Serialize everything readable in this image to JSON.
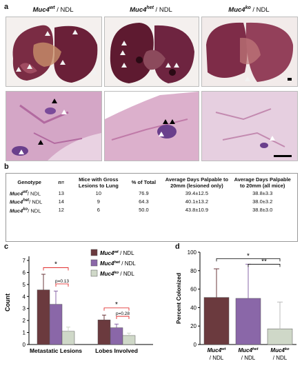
{
  "panel_a": {
    "letter": "a",
    "headers": [
      {
        "gene": "Muc4",
        "sup": "wt",
        "suffix": " / NDL"
      },
      {
        "gene": "Muc4",
        "sup": "het",
        "suffix": " / NDL"
      },
      {
        "gene": "Muc4",
        "sup": "ko",
        "suffix": " / NDL"
      }
    ],
    "colors": {
      "lung_dark": "#5a1a2e",
      "lung_mid": "#8e3a52",
      "lung_light": "#c07a88",
      "hist_bg": "#e8cfe0",
      "hist_tissue": "#c993b8",
      "hist_lesion": "#6a3f8c"
    }
  },
  "panel_b": {
    "letter": "b",
    "columns": [
      "Genotype",
      "n=",
      "Mice with Gross Lesions to Lung",
      "% of Total",
      "Average Days Palpable to 20mm (lesioned only)",
      "Average Days Palpable to 20mm (all mice)"
    ],
    "rows": [
      {
        "gene": "Muc4",
        "sup": "wt",
        "suffix": "/ NDL",
        "n": "13",
        "mice": "10",
        "pct": "76.9",
        "avg_lesioned": "39.4±12.5",
        "avg_all": "38.8±3.3"
      },
      {
        "gene": "Muc4",
        "sup": "het",
        "suffix": "/ NDL",
        "n": "14",
        "mice": "9",
        "pct": "64.3",
        "avg_lesioned": "40.1±13.2",
        "avg_all": "38.0±3.2"
      },
      {
        "gene": "Muc4",
        "sup": "ko",
        "suffix": "/ NDL",
        "n": "12",
        "mice": "6",
        "pct": "50.0",
        "avg_lesioned": "43.8±10.9",
        "avg_all": "38.8±3.0"
      }
    ]
  },
  "panel_c": {
    "letter": "c"
  },
  "panel_d": {
    "letter": "d"
  },
  "chart_data": [
    {
      "type": "bar",
      "panel": "c",
      "categories": [
        "Metastatic Lesions",
        "Lobes Involved"
      ],
      "ylabel": "Count",
      "xlabel": "",
      "ylim": [
        0,
        7
      ],
      "yticks": [
        0,
        1,
        2,
        3,
        4,
        5,
        6,
        7
      ],
      "series": [
        {
          "name_gene": "Muc4",
          "name_sup": "wt",
          "name_suffix": " / NDL",
          "color": "#6b3a3e",
          "values": [
            4.55,
            2.05
          ],
          "errors": [
            1.3,
            0.4
          ]
        },
        {
          "name_gene": "Muc4",
          "name_sup": "het",
          "name_suffix": " / NDL",
          "color": "#8a67a8",
          "values": [
            3.35,
            1.4
          ],
          "errors": [
            1.1,
            0.3
          ]
        },
        {
          "name_gene": "Muc4",
          "name_sup": "ko",
          "name_suffix": " / NDL",
          "color": "#cfd8c8",
          "values": [
            1.1,
            0.75
          ],
          "errors": [
            0.35,
            0.2
          ]
        }
      ],
      "annotations": [
        {
          "text": "*",
          "group": 0,
          "from": 0,
          "to": 2,
          "level": 6.4
        },
        {
          "text": "p=0.13",
          "group": 0,
          "from": 1,
          "to": 2,
          "level": 5.05
        },
        {
          "text": "*",
          "group": 1,
          "from": 0,
          "to": 2,
          "level": 3.05
        },
        {
          "text": "p=0.28",
          "group": 1,
          "from": 1,
          "to": 2,
          "level": 2.35
        }
      ],
      "legend": "top-right"
    },
    {
      "type": "bar",
      "panel": "d",
      "categories": [
        {
          "gene": "Muc4",
          "sup": "wt",
          "line2": "/ NDL"
        },
        {
          "gene": "Muc4",
          "sup": "het",
          "line2": "/ NDL"
        },
        {
          "gene": "Muc4",
          "sup": "ko",
          "line2": "/ NDL"
        }
      ],
      "ylabel": "Percent Colonized",
      "ylim": [
        0,
        100
      ],
      "yticks": [
        0,
        20,
        40,
        60,
        80,
        100
      ],
      "values": [
        51,
        50,
        17
      ],
      "errors": [
        31,
        37,
        29
      ],
      "colors": [
        "#6b3a3e",
        "#8a67a8",
        "#cfd8c8"
      ],
      "annotations": [
        {
          "text": "*",
          "from": 0,
          "to": 2,
          "level": 93
        },
        {
          "text": "**",
          "from": 1,
          "to": 2,
          "level": 87
        }
      ]
    }
  ]
}
